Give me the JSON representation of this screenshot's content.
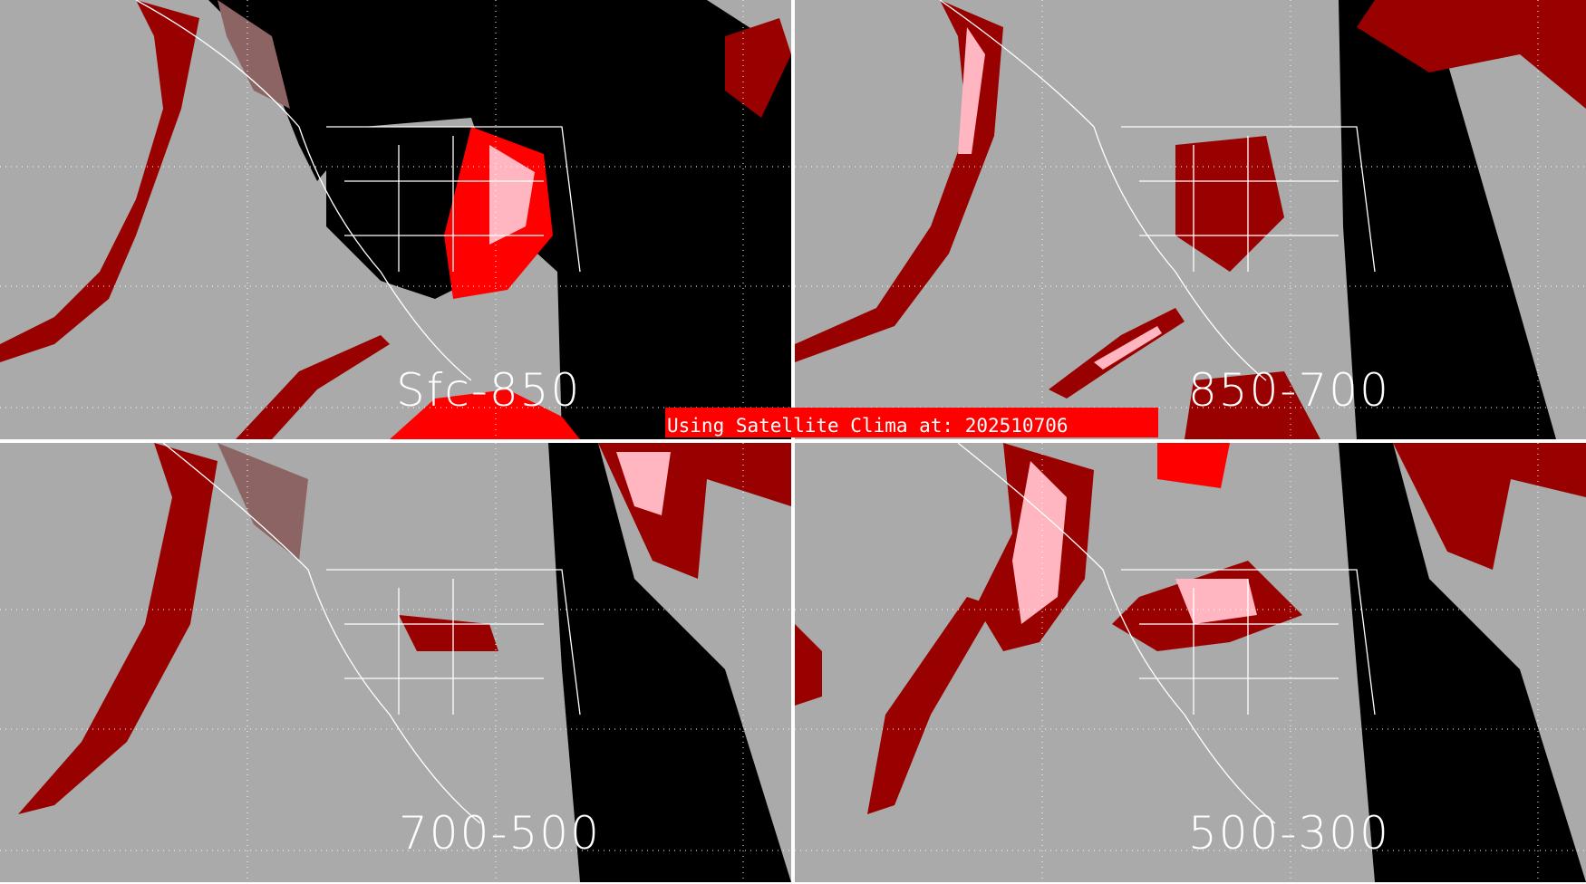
{
  "panels": [
    {
      "label": "Sfc-850"
    },
    {
      "label": "850-700"
    },
    {
      "label": "700-500"
    },
    {
      "label": "500-300"
    }
  ],
  "banner": {
    "text": "Using Satellite Clima at: 202510706"
  },
  "colors": {
    "background": "#aaaaaa",
    "night": "#000000",
    "dark_red": "#990000",
    "muted_red": "#8c6464",
    "pink": "#ffb6c1",
    "red": "#ff0000",
    "coastlines": "#ffffff",
    "banner": "#ff0000"
  }
}
